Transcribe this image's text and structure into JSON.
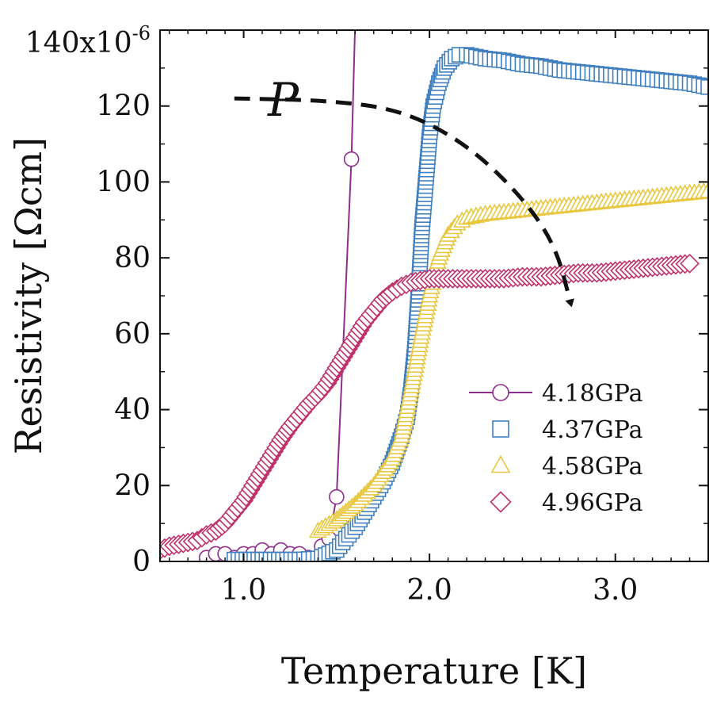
{
  "chart_data": {
    "type": "scatter",
    "title": "",
    "xlabel": "Temperature [K]",
    "ylabel": "Resistivity [Ωcm]",
    "y_scale_label": "140x10",
    "y_scale_exponent": "-6",
    "xlim": [
      0.55,
      3.5
    ],
    "ylim": [
      0,
      140
    ],
    "x_ticks": [
      1.0,
      2.0,
      3.0
    ],
    "x_tick_labels": [
      "1.0",
      "2.0",
      "3.0"
    ],
    "y_ticks": [
      0,
      20,
      40,
      60,
      80,
      100,
      120
    ],
    "y_tick_labels": [
      "0",
      "20",
      "40",
      "60",
      "80",
      "100",
      "120"
    ],
    "legend_position": "lower-right",
    "annotation": {
      "label": "P",
      "path": [
        [
          0.95,
          122
        ],
        [
          1.45,
          121.5
        ],
        [
          1.85,
          119
        ],
        [
          2.2,
          110
        ],
        [
          2.5,
          96
        ],
        [
          2.68,
          83
        ],
        [
          2.76,
          68
        ]
      ],
      "meaning": "arrow indicating increasing pressure"
    },
    "series": [
      {
        "name": "4.18GPa",
        "color": "#8e2e8e",
        "marker": "circle",
        "connected": true,
        "x": [
          0.8,
          0.85,
          0.9,
          0.95,
          1.0,
          1.05,
          1.1,
          1.15,
          1.2,
          1.25,
          1.3,
          1.35,
          1.42,
          1.46,
          1.5,
          1.58,
          1.6
        ],
        "y": [
          1,
          2,
          2,
          1,
          2,
          2,
          3,
          2,
          3,
          2,
          2,
          1,
          4,
          6,
          17,
          106,
          142
        ]
      },
      {
        "name": "4.37GPa",
        "color": "#3f7fbf",
        "marker": "square",
        "connected": false,
        "x": [
          0.95,
          1.1,
          1.3,
          1.4,
          1.5,
          1.55,
          1.6,
          1.65,
          1.7,
          1.75,
          1.8,
          1.85,
          1.88,
          1.9,
          1.92,
          1.94,
          1.96,
          1.98,
          2.0,
          2.02,
          2.05,
          2.08,
          2.12,
          2.16,
          2.2,
          2.25,
          2.3,
          2.4,
          2.5,
          2.6,
          2.7,
          2.8,
          2.9,
          3.0,
          3.1,
          3.2,
          3.3,
          3.4,
          3.5
        ],
        "y": [
          0.5,
          0.5,
          0.5,
          0.8,
          3,
          6,
          9,
          13,
          17,
          21,
          26,
          33,
          38,
          45,
          55,
          70,
          88,
          100,
          112,
          120,
          126,
          130,
          132.5,
          133.5,
          133.5,
          133,
          132.5,
          132,
          131,
          130.5,
          129.5,
          129,
          128.5,
          128,
          127.5,
          127,
          126.5,
          126,
          125
        ]
      },
      {
        "name": "4.58GPa",
        "color": "#e8c840",
        "marker": "triangle",
        "connected": false,
        "x": [
          1.4,
          1.5,
          1.6,
          1.7,
          1.8,
          1.85,
          1.9,
          1.95,
          2.0,
          2.05,
          2.1,
          2.15,
          2.2,
          2.3,
          2.4,
          2.5,
          2.6,
          2.7,
          2.8,
          2.9,
          3.0,
          3.1,
          3.2,
          3.3,
          3.4,
          3.5
        ],
        "y": [
          8,
          11,
          15,
          20,
          27,
          33,
          45,
          58,
          70,
          80,
          86,
          89,
          90.5,
          91.5,
          92,
          92.5,
          93,
          93.5,
          94,
          94.5,
          95,
          95.5,
          96,
          96.5,
          97,
          97.5
        ]
      },
      {
        "name": "4.96GPa",
        "color": "#c0306a",
        "marker": "diamond",
        "connected": false,
        "x": [
          0.55,
          0.6,
          0.65,
          0.7,
          0.75,
          0.8,
          0.85,
          0.9,
          0.95,
          1.0,
          1.05,
          1.1,
          1.15,
          1.2,
          1.25,
          1.3,
          1.35,
          1.4,
          1.45,
          1.5,
          1.55,
          1.6,
          1.65,
          1.7,
          1.75,
          1.8,
          1.85,
          1.9,
          1.95,
          2.0,
          2.1,
          2.2,
          2.3,
          2.4,
          2.5,
          2.6,
          2.7,
          2.8,
          2.9,
          3.0,
          3.1,
          3.2,
          3.3,
          3.4
        ],
        "y": [
          3,
          4,
          4.5,
          5,
          5.5,
          7,
          8,
          10,
          13,
          16,
          20,
          24,
          28,
          32,
          35.5,
          38.5,
          41.5,
          44,
          47,
          51,
          55,
          59,
          63,
          66,
          69,
          71,
          72.5,
          73.5,
          74,
          74.5,
          74.5,
          74.5,
          74.5,
          74.5,
          75,
          75,
          75.5,
          76,
          76,
          76.5,
          77,
          77.5,
          78,
          78.5
        ]
      }
    ]
  }
}
